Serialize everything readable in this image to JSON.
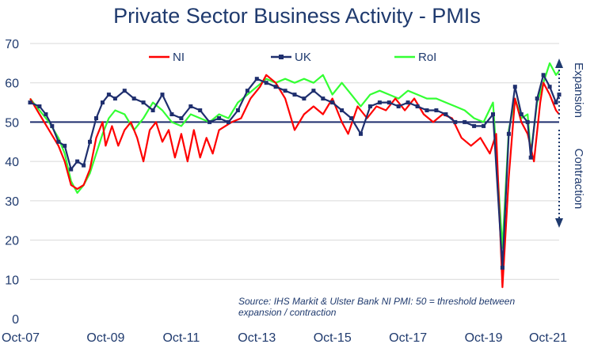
{
  "chart_data": {
    "type": "line",
    "title": "Private Sector Business Activity - PMIs",
    "x_ticks": [
      "Oct-07",
      "Oct-09",
      "Oct-11",
      "Oct-13",
      "Oct-15",
      "Oct-17",
      "Oct-19",
      "Oct-21"
    ],
    "x_range": [
      "2007-10",
      "2021-10"
    ],
    "ylim": [
      0,
      70
    ],
    "y_ticks": [
      0,
      10,
      20,
      30,
      40,
      50,
      60,
      70
    ],
    "threshold": 50,
    "grid": "horizontal",
    "legend_position": "top",
    "annotations": {
      "expansion": "Expansion",
      "contraction": "Contraction",
      "source_line1": "Source: IHS Markit & Ulster Bank NI PMI: 50 = threshold between",
      "source_line2": "expansion / contraction"
    },
    "series": [
      {
        "name": "NI",
        "color": "#ff0000",
        "marker": "none",
        "points": [
          [
            "2007-10",
            56
          ],
          [
            "2008-01",
            52
          ],
          [
            "2008-04",
            48
          ],
          [
            "2008-07",
            44
          ],
          [
            "2008-09",
            40
          ],
          [
            "2008-11",
            34
          ],
          [
            "2009-01",
            33
          ],
          [
            "2009-03",
            34
          ],
          [
            "2009-05",
            38
          ],
          [
            "2009-07",
            46
          ],
          [
            "2009-09",
            50
          ],
          [
            "2009-10",
            44
          ],
          [
            "2009-12",
            49
          ],
          [
            "2010-02",
            44
          ],
          [
            "2010-04",
            48
          ],
          [
            "2010-06",
            50
          ],
          [
            "2010-08",
            46
          ],
          [
            "2010-10",
            40
          ],
          [
            "2010-12",
            48
          ],
          [
            "2011-02",
            50
          ],
          [
            "2011-04",
            45
          ],
          [
            "2011-06",
            48
          ],
          [
            "2011-08",
            41
          ],
          [
            "2011-10",
            47
          ],
          [
            "2011-12",
            40
          ],
          [
            "2012-02",
            48
          ],
          [
            "2012-04",
            41
          ],
          [
            "2012-06",
            46
          ],
          [
            "2012-08",
            42
          ],
          [
            "2012-10",
            48
          ],
          [
            "2012-12",
            49
          ],
          [
            "2013-02",
            50
          ],
          [
            "2013-05",
            51
          ],
          [
            "2013-08",
            56
          ],
          [
            "2013-11",
            59
          ],
          [
            "2014-01",
            62
          ],
          [
            "2014-04",
            60
          ],
          [
            "2014-07",
            56
          ],
          [
            "2014-10",
            48
          ],
          [
            "2015-01",
            52
          ],
          [
            "2015-04",
            54
          ],
          [
            "2015-07",
            52
          ],
          [
            "2015-10",
            56
          ],
          [
            "2016-01",
            50
          ],
          [
            "2016-03",
            47
          ],
          [
            "2016-06",
            54
          ],
          [
            "2016-09",
            51
          ],
          [
            "2016-12",
            54
          ],
          [
            "2017-03",
            53
          ],
          [
            "2017-06",
            56
          ],
          [
            "2017-09",
            53
          ],
          [
            "2017-12",
            56
          ],
          [
            "2018-03",
            52
          ],
          [
            "2018-06",
            50
          ],
          [
            "2018-09",
            52
          ],
          [
            "2018-12",
            51
          ],
          [
            "2019-03",
            46
          ],
          [
            "2019-06",
            44
          ],
          [
            "2019-09",
            46
          ],
          [
            "2019-12",
            42
          ],
          [
            "2020-02",
            47
          ],
          [
            "2020-04",
            8
          ],
          [
            "2020-06",
            36
          ],
          [
            "2020-08",
            56
          ],
          [
            "2020-10",
            50
          ],
          [
            "2020-12",
            47
          ],
          [
            "2021-02",
            40
          ],
          [
            "2021-04",
            55
          ],
          [
            "2021-05",
            60
          ],
          [
            "2021-07",
            57
          ],
          [
            "2021-09",
            53
          ],
          [
            "2021-10",
            52
          ]
        ]
      },
      {
        "name": "UK",
        "color": "#1f2f6e",
        "marker": "square",
        "points": [
          [
            "2007-10",
            55
          ],
          [
            "2008-01",
            54
          ],
          [
            "2008-03",
            52
          ],
          [
            "2008-05",
            49
          ],
          [
            "2008-07",
            45
          ],
          [
            "2008-09",
            44
          ],
          [
            "2008-11",
            38
          ],
          [
            "2009-01",
            40
          ],
          [
            "2009-03",
            39
          ],
          [
            "2009-05",
            45
          ],
          [
            "2009-07",
            51
          ],
          [
            "2009-09",
            55
          ],
          [
            "2009-11",
            57
          ],
          [
            "2010-01",
            56
          ],
          [
            "2010-04",
            58
          ],
          [
            "2010-07",
            56
          ],
          [
            "2010-10",
            55
          ],
          [
            "2011-01",
            53
          ],
          [
            "2011-04",
            57
          ],
          [
            "2011-07",
            52
          ],
          [
            "2011-10",
            51
          ],
          [
            "2012-01",
            54
          ],
          [
            "2012-04",
            53
          ],
          [
            "2012-07",
            50
          ],
          [
            "2012-10",
            51
          ],
          [
            "2013-01",
            50
          ],
          [
            "2013-04",
            53
          ],
          [
            "2013-07",
            58
          ],
          [
            "2013-10",
            61
          ],
          [
            "2014-01",
            60
          ],
          [
            "2014-04",
            59
          ],
          [
            "2014-07",
            58
          ],
          [
            "2014-10",
            57
          ],
          [
            "2015-01",
            56
          ],
          [
            "2015-04",
            58
          ],
          [
            "2015-07",
            56
          ],
          [
            "2015-10",
            55
          ],
          [
            "2016-01",
            53
          ],
          [
            "2016-04",
            51
          ],
          [
            "2016-07",
            47
          ],
          [
            "2016-10",
            54
          ],
          [
            "2017-01",
            55
          ],
          [
            "2017-04",
            55
          ],
          [
            "2017-07",
            54
          ],
          [
            "2017-10",
            55
          ],
          [
            "2018-01",
            54
          ],
          [
            "2018-04",
            53
          ],
          [
            "2018-07",
            53
          ],
          [
            "2018-10",
            52
          ],
          [
            "2019-01",
            50
          ],
          [
            "2019-04",
            50
          ],
          [
            "2019-07",
            49
          ],
          [
            "2019-10",
            49
          ],
          [
            "2020-01",
            52
          ],
          [
            "2020-04",
            13
          ],
          [
            "2020-06",
            47
          ],
          [
            "2020-08",
            59
          ],
          [
            "2020-10",
            52
          ],
          [
            "2020-12",
            50
          ],
          [
            "2021-01",
            41
          ],
          [
            "2021-03",
            56
          ],
          [
            "2021-05",
            62
          ],
          [
            "2021-07",
            59
          ],
          [
            "2021-09",
            55
          ],
          [
            "2021-10",
            57
          ]
        ]
      },
      {
        "name": "RoI",
        "color": "#33ff33",
        "marker": "none",
        "points": [
          [
            "2007-10",
            56
          ],
          [
            "2008-01",
            53
          ],
          [
            "2008-04",
            50
          ],
          [
            "2008-07",
            46
          ],
          [
            "2008-09",
            42
          ],
          [
            "2008-11",
            35
          ],
          [
            "2009-01",
            32
          ],
          [
            "2009-03",
            34
          ],
          [
            "2009-05",
            37
          ],
          [
            "2009-07",
            42
          ],
          [
            "2009-09",
            47
          ],
          [
            "2009-11",
            51
          ],
          [
            "2010-01",
            53
          ],
          [
            "2010-04",
            52
          ],
          [
            "2010-07",
            48
          ],
          [
            "2010-10",
            51
          ],
          [
            "2011-01",
            55
          ],
          [
            "2011-04",
            53
          ],
          [
            "2011-07",
            50
          ],
          [
            "2011-10",
            49
          ],
          [
            "2012-01",
            52
          ],
          [
            "2012-04",
            51
          ],
          [
            "2012-07",
            50
          ],
          [
            "2012-10",
            52
          ],
          [
            "2013-01",
            51
          ],
          [
            "2013-04",
            55
          ],
          [
            "2013-07",
            57
          ],
          [
            "2013-10",
            59
          ],
          [
            "2014-01",
            61
          ],
          [
            "2014-04",
            60
          ],
          [
            "2014-07",
            61
          ],
          [
            "2014-10",
            60
          ],
          [
            "2015-01",
            61
          ],
          [
            "2015-04",
            60
          ],
          [
            "2015-07",
            62
          ],
          [
            "2015-10",
            57
          ],
          [
            "2016-01",
            60
          ],
          [
            "2016-04",
            57
          ],
          [
            "2016-07",
            54
          ],
          [
            "2016-10",
            57
          ],
          [
            "2017-01",
            58
          ],
          [
            "2017-04",
            57
          ],
          [
            "2017-07",
            56
          ],
          [
            "2017-10",
            58
          ],
          [
            "2018-01",
            57
          ],
          [
            "2018-04",
            56
          ],
          [
            "2018-07",
            56
          ],
          [
            "2018-10",
            55
          ],
          [
            "2019-01",
            54
          ],
          [
            "2019-04",
            53
          ],
          [
            "2019-07",
            51
          ],
          [
            "2019-10",
            50
          ],
          [
            "2020-01",
            55
          ],
          [
            "2020-04",
            18
          ],
          [
            "2020-06",
            48
          ],
          [
            "2020-08",
            56
          ],
          [
            "2020-10",
            51
          ],
          [
            "2020-12",
            52
          ],
          [
            "2021-01",
            42
          ],
          [
            "2021-03",
            55
          ],
          [
            "2021-05",
            60
          ],
          [
            "2021-07",
            65
          ],
          [
            "2021-09",
            62
          ],
          [
            "2021-10",
            63
          ]
        ]
      }
    ]
  }
}
